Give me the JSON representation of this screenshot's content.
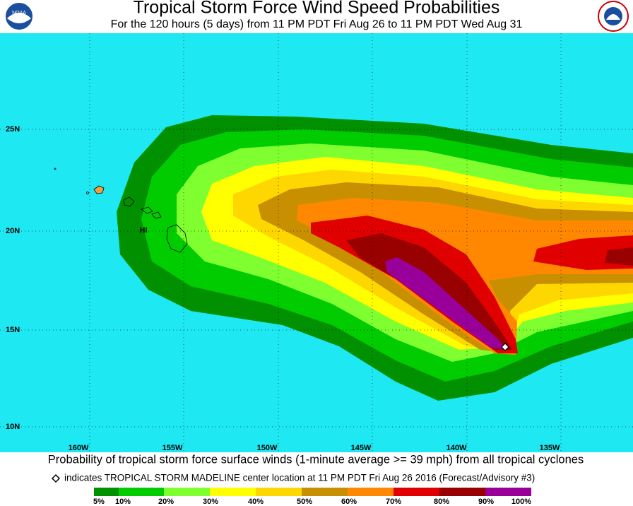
{
  "header": {
    "title": "Tropical Storm Force Wind Speed Probabilities",
    "subtitle": "For the 120 hours (5 days) from 11 PM PDT Fri Aug 26 to 11 PM PDT Wed Aug 31"
  },
  "map": {
    "latitude_labels": [
      "25N",
      "20N",
      "15N",
      "10N"
    ],
    "longitude_labels": [
      "160W",
      "155W",
      "150W",
      "145W",
      "140W",
      "135W"
    ],
    "place_label": "HI"
  },
  "footer": {
    "caption": "Probability of tropical storm force surface winds (1-minute average >= 39 mph) from all tropical cyclones",
    "marker_note": "indicates TROPICAL STORM MADELINE center location at 11 PM PDT Fri Aug 26 2016 (Forecast/Advisory #3)"
  },
  "legend": {
    "labels": [
      "5%",
      "10%",
      "20%",
      "30%",
      "40%",
      "50%",
      "60%",
      "70%",
      "80%",
      "90%",
      "100%"
    ],
    "colors": [
      "#009000",
      "#00cc00",
      "#80ff30",
      "#ffff00",
      "#ffd700",
      "#c89000",
      "#ff8800",
      "#e00000",
      "#990000",
      "#990099"
    ]
  }
}
